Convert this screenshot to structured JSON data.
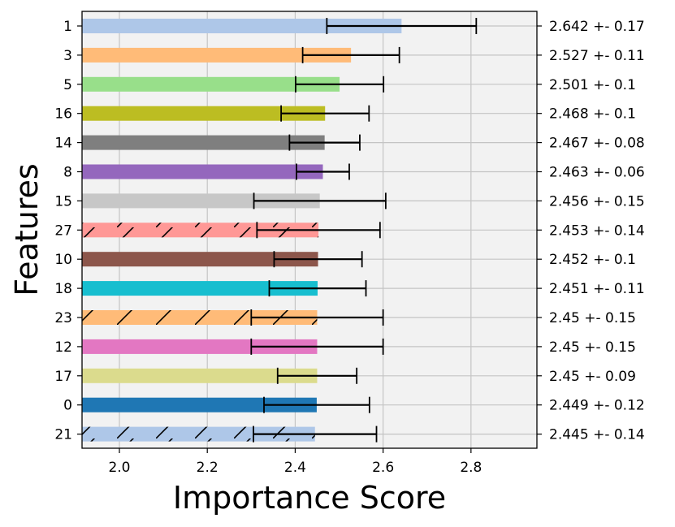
{
  "chart_data": {
    "type": "bar",
    "orientation": "horizontal",
    "title": "",
    "xlabel": "Importance Score",
    "ylabel": "Features",
    "xlim": [
      1.915,
      2.95
    ],
    "xticks": [
      2.0,
      2.2,
      2.4,
      2.6,
      2.8
    ],
    "xtick_labels": [
      "2.0",
      "2.2",
      "2.4",
      "2.6",
      "2.8"
    ],
    "grid": true,
    "features": [
      {
        "label": "1",
        "value": 2.642,
        "error": 0.17,
        "annotation": "2.642 +- 0.17",
        "color": "#aec7e8",
        "hatch": false
      },
      {
        "label": "3",
        "value": 2.527,
        "error": 0.11,
        "annotation": "2.527 +- 0.11",
        "color": "#ffbb78",
        "hatch": false
      },
      {
        "label": "5",
        "value": 2.501,
        "error": 0.1,
        "annotation": "2.501 +- 0.1",
        "color": "#98df8a",
        "hatch": false
      },
      {
        "label": "16",
        "value": 2.468,
        "error": 0.1,
        "annotation": "2.468 +- 0.1",
        "color": "#bcbd22",
        "hatch": false
      },
      {
        "label": "14",
        "value": 2.467,
        "error": 0.08,
        "annotation": "2.467 +- 0.08",
        "color": "#7f7f7f",
        "hatch": false
      },
      {
        "label": "8",
        "value": 2.463,
        "error": 0.06,
        "annotation": "2.463 +- 0.06",
        "color": "#9467bd",
        "hatch": false
      },
      {
        "label": "15",
        "value": 2.456,
        "error": 0.15,
        "annotation": "2.456 +- 0.15",
        "color": "#c7c7c7",
        "hatch": false
      },
      {
        "label": "27",
        "value": 2.453,
        "error": 0.14,
        "annotation": "2.453 +- 0.14",
        "color": "#ff9896",
        "hatch": true
      },
      {
        "label": "10",
        "value": 2.452,
        "error": 0.1,
        "annotation": "2.452 +- 0.1",
        "color": "#8c564b",
        "hatch": false
      },
      {
        "label": "18",
        "value": 2.451,
        "error": 0.11,
        "annotation": "2.451 +- 0.11",
        "color": "#17becf",
        "hatch": false
      },
      {
        "label": "23",
        "value": 2.45,
        "error": 0.15,
        "annotation": "2.45 +- 0.15",
        "color": "#ffbb78",
        "hatch": true
      },
      {
        "label": "12",
        "value": 2.45,
        "error": 0.15,
        "annotation": "2.45 +- 0.15",
        "color": "#e377c2",
        "hatch": false
      },
      {
        "label": "17",
        "value": 2.45,
        "error": 0.09,
        "annotation": "2.45 +- 0.09",
        "color": "#dbdb8d",
        "hatch": false
      },
      {
        "label": "0",
        "value": 2.449,
        "error": 0.12,
        "annotation": "2.449 +- 0.12",
        "color": "#1f77b4",
        "hatch": false
      },
      {
        "label": "21",
        "value": 2.445,
        "error": 0.14,
        "annotation": "2.445 +- 0.14",
        "color": "#aec7e8",
        "hatch": true
      }
    ]
  }
}
